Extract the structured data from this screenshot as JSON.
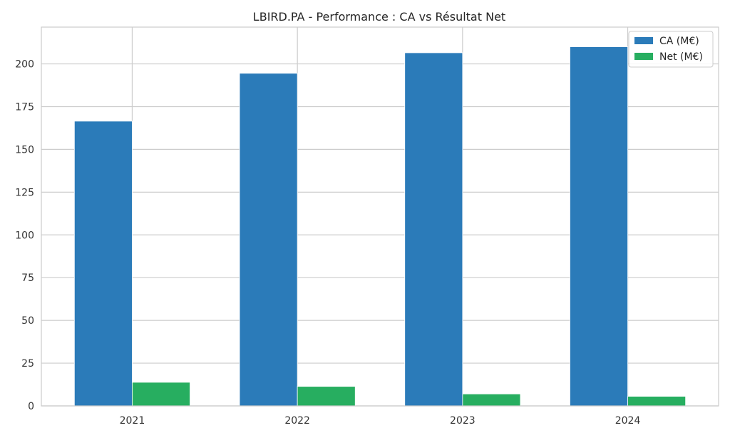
{
  "chart_data": {
    "type": "bar",
    "title": "LBIRD.PA - Performance : CA vs Résultat Net",
    "xlabel": "",
    "ylabel": "",
    "categories": [
      "2021",
      "2022",
      "2023",
      "2024"
    ],
    "series": [
      {
        "name": "CA (M€)",
        "color": "#2b7bb9",
        "values": [
          166.5,
          194.5,
          206.5,
          210.0
        ]
      },
      {
        "name": "Net (M€)",
        "color": "#27ae60",
        "values": [
          13.8,
          11.4,
          7.0,
          5.6
        ]
      }
    ],
    "ylim": [
      0,
      221.5
    ],
    "yticks": [
      0,
      25,
      50,
      75,
      100,
      125,
      150,
      175,
      200
    ],
    "grid": true,
    "legend": "top-right"
  }
}
